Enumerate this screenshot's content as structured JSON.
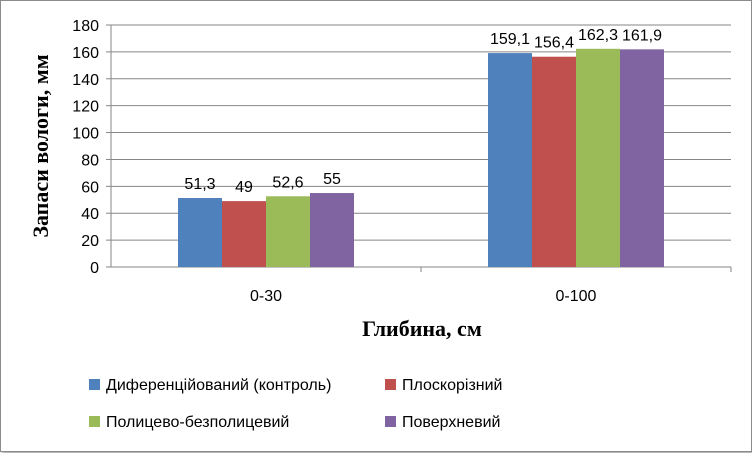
{
  "chart_data": {
    "type": "bar",
    "title": "",
    "xlabel": "Глибина, см",
    "ylabel": "Запаси вологи, мм",
    "categories": [
      "0-30",
      "0-100"
    ],
    "ylim": [
      0,
      180
    ],
    "yticks": [
      0,
      20,
      40,
      60,
      80,
      100,
      120,
      140,
      160,
      180
    ],
    "grid": "horizontal",
    "legend_position": "bottom",
    "series": [
      {
        "name": "Диференційований (контроль)",
        "color": "#4f81bd",
        "values": [
          51.3,
          159.1
        ],
        "labels": [
          "51,3",
          "159,1"
        ]
      },
      {
        "name": "Плоскорізний",
        "color": "#c0504d",
        "values": [
          49,
          156.4
        ],
        "labels": [
          "49",
          "156,4"
        ]
      },
      {
        "name": "Полицево-безполицевий",
        "color": "#9bbb59",
        "values": [
          52.6,
          162.3
        ],
        "labels": [
          "52,6",
          "162,3"
        ]
      },
      {
        "name": "Поверхневий",
        "color": "#8064a2",
        "values": [
          55,
          161.9
        ],
        "labels": [
          "55",
          "161,9"
        ]
      }
    ]
  }
}
